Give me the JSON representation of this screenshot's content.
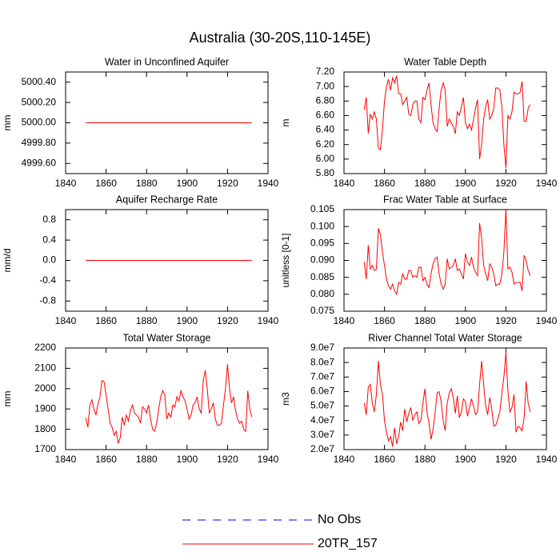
{
  "title": "Australia (30-20S,110-145E)",
  "legend": [
    {
      "name": "No Obs",
      "color": "#0000ff",
      "dash": true
    },
    {
      "name": "20TR_157",
      "color": "#ff0000",
      "dash": false
    }
  ],
  "chart_data": [
    {
      "type": "line",
      "title": "Water in Unconfined Aquifer",
      "ylabel": "mm",
      "color": "#ff0000",
      "x": [
        1850,
        1851,
        1852,
        1853,
        1854,
        1855,
        1856,
        1857,
        1858,
        1859,
        1860,
        1861,
        1862,
        1863,
        1864,
        1865,
        1866,
        1867,
        1868,
        1869,
        1870,
        1871,
        1872,
        1873,
        1874,
        1875,
        1876,
        1877,
        1878,
        1879,
        1880,
        1881,
        1882,
        1883,
        1884,
        1885,
        1886,
        1887,
        1888,
        1889,
        1890,
        1891,
        1892,
        1893,
        1894,
        1895,
        1896,
        1897,
        1898,
        1899,
        1900,
        1901,
        1902,
        1903,
        1904,
        1905,
        1906,
        1907,
        1908,
        1909,
        1910,
        1911,
        1912,
        1913,
        1914,
        1915,
        1916,
        1917,
        1918,
        1919,
        1920,
        1921,
        1922,
        1923,
        1924,
        1925,
        1926,
        1927,
        1928,
        1929,
        1930,
        1931,
        1932
      ],
      "values": [
        5000,
        5000,
        5000,
        5000,
        5000,
        5000,
        5000,
        5000,
        5000,
        5000,
        5000,
        5000,
        5000,
        5000,
        5000,
        5000,
        5000,
        5000,
        5000,
        5000,
        5000,
        5000,
        5000,
        5000,
        5000,
        5000,
        5000,
        5000,
        5000,
        5000,
        5000,
        5000,
        5000,
        5000,
        5000,
        5000,
        5000,
        5000,
        5000,
        5000,
        5000,
        5000,
        5000,
        5000,
        5000,
        5000,
        5000,
        5000,
        5000,
        5000,
        5000,
        5000,
        5000,
        5000,
        5000,
        5000,
        5000,
        5000,
        5000,
        5000,
        5000,
        5000,
        5000,
        5000,
        5000,
        5000,
        5000,
        5000,
        5000,
        5000,
        5000,
        5000,
        5000,
        5000,
        5000,
        5000,
        5000,
        5000,
        5000,
        5000,
        5000,
        5000,
        5000
      ],
      "xlim": [
        1840,
        1940
      ],
      "xticks": [
        1840,
        1860,
        1880,
        1900,
        1920,
        1940
      ],
      "ylim": [
        4999.5,
        5000.5
      ],
      "yticks": [
        {
          "value": 4999.6,
          "label": "4999.60"
        },
        {
          "value": 4999.8,
          "label": "4999.80"
        },
        {
          "value": 5000,
          "label": "5000.00"
        },
        {
          "value": 5000.2,
          "label": "5000.20"
        },
        {
          "value": 5000.4,
          "label": "5000.40"
        }
      ]
    },
    {
      "type": "line",
      "title": "Water Table Depth",
      "ylabel": "m",
      "color": "#ff0000",
      "x": [
        1850,
        1851,
        1852,
        1853,
        1854,
        1855,
        1856,
        1857,
        1858,
        1859,
        1860,
        1861,
        1862,
        1863,
        1864,
        1865,
        1866,
        1867,
        1868,
        1869,
        1870,
        1871,
        1872,
        1873,
        1874,
        1875,
        1876,
        1877,
        1878,
        1879,
        1880,
        1881,
        1882,
        1883,
        1884,
        1885,
        1886,
        1887,
        1888,
        1889,
        1890,
        1891,
        1892,
        1893,
        1894,
        1895,
        1896,
        1897,
        1898,
        1899,
        1900,
        1901,
        1902,
        1903,
        1904,
        1905,
        1906,
        1907,
        1908,
        1909,
        1910,
        1911,
        1912,
        1913,
        1914,
        1915,
        1916,
        1917,
        1918,
        1919,
        1920,
        1921,
        1922,
        1923,
        1924,
        1925,
        1926,
        1927,
        1928,
        1929,
        1930,
        1931,
        1932
      ],
      "values": [
        6.68,
        6.85,
        6.35,
        6.62,
        6.55,
        6.65,
        6.55,
        6.15,
        6.13,
        6.4,
        6.8,
        7.0,
        7.1,
        6.95,
        7.12,
        7.05,
        7.15,
        6.9,
        6.9,
        6.75,
        6.8,
        6.85,
        6.62,
        6.6,
        6.75,
        6.8,
        6.8,
        6.55,
        6.5,
        6.85,
        6.82,
        6.95,
        7.05,
        6.75,
        6.5,
        6.42,
        6.38,
        6.7,
        6.95,
        7.05,
        6.95,
        6.45,
        6.55,
        6.5,
        6.45,
        6.35,
        6.65,
        6.6,
        6.72,
        6.85,
        6.5,
        6.42,
        6.48,
        6.4,
        6.55,
        6.7,
        6.82,
        6.0,
        6.2,
        6.55,
        6.72,
        6.82,
        6.55,
        6.6,
        6.7,
        6.98,
        6.98,
        6.95,
        6.72,
        6.2,
        5.88,
        6.6,
        6.55,
        6.65,
        6.92,
        6.9,
        6.9,
        6.92,
        7.07,
        6.52,
        6.52,
        6.7,
        6.75
      ],
      "xlim": [
        1840,
        1940
      ],
      "xticks": [
        1840,
        1860,
        1880,
        1900,
        1920,
        1940
      ],
      "ylim": [
        5.8,
        7.2
      ],
      "yticks": [
        {
          "value": 5.8,
          "label": "5.80"
        },
        {
          "value": 6.0,
          "label": "6.00"
        },
        {
          "value": 6.2,
          "label": "6.20"
        },
        {
          "value": 6.4,
          "label": "6.40"
        },
        {
          "value": 6.6,
          "label": "6.60"
        },
        {
          "value": 6.8,
          "label": "6.80"
        },
        {
          "value": 7.0,
          "label": "7.00"
        },
        {
          "value": 7.2,
          "label": "7.20"
        }
      ]
    },
    {
      "type": "line",
      "title": "Aquifer Recharge Rate",
      "ylabel": "mm/d",
      "color": "#ff0000",
      "x": [
        1850,
        1851,
        1852,
        1853,
        1854,
        1855,
        1856,
        1857,
        1858,
        1859,
        1860,
        1861,
        1862,
        1863,
        1864,
        1865,
        1866,
        1867,
        1868,
        1869,
        1870,
        1871,
        1872,
        1873,
        1874,
        1875,
        1876,
        1877,
        1878,
        1879,
        1880,
        1881,
        1882,
        1883,
        1884,
        1885,
        1886,
        1887,
        1888,
        1889,
        1890,
        1891,
        1892,
        1893,
        1894,
        1895,
        1896,
        1897,
        1898,
        1899,
        1900,
        1901,
        1902,
        1903,
        1904,
        1905,
        1906,
        1907,
        1908,
        1909,
        1910,
        1911,
        1912,
        1913,
        1914,
        1915,
        1916,
        1917,
        1918,
        1919,
        1920,
        1921,
        1922,
        1923,
        1924,
        1925,
        1926,
        1927,
        1928,
        1929,
        1930,
        1931,
        1932
      ],
      "values": [
        0,
        0,
        0,
        0,
        0,
        0,
        0,
        0,
        0,
        0,
        0,
        0,
        0,
        0,
        0,
        0,
        0,
        0,
        0,
        0,
        0,
        0,
        0,
        0,
        0,
        0,
        0,
        0,
        0,
        0,
        0,
        0,
        0,
        0,
        0,
        0,
        0,
        0,
        0,
        0,
        0,
        0,
        0,
        0,
        0,
        0,
        0,
        0,
        0,
        0,
        0,
        0,
        0,
        0,
        0,
        0,
        0,
        0,
        0,
        0,
        0,
        0,
        0,
        0,
        0,
        0,
        0,
        0,
        0,
        0,
        0,
        0,
        0,
        0,
        0,
        0,
        0,
        0,
        0,
        0,
        0,
        0,
        0
      ],
      "xlim": [
        1840,
        1940
      ],
      "xticks": [
        1840,
        1860,
        1880,
        1900,
        1920,
        1940
      ],
      "ylim": [
        -1,
        1
      ],
      "yticks": [
        -0.8,
        -0.4,
        {
          "value": 0,
          "label": "0.0"
        },
        0.4,
        0.8
      ]
    },
    {
      "type": "line",
      "title": "Frac Water Table at Surface",
      "ylabel": "unitless [0-1]",
      "color": "#ff0000",
      "x": [
        1850,
        1851,
        1852,
        1853,
        1854,
        1855,
        1856,
        1857,
        1858,
        1859,
        1860,
        1861,
        1862,
        1863,
        1864,
        1865,
        1866,
        1867,
        1868,
        1869,
        1870,
        1871,
        1872,
        1873,
        1874,
        1875,
        1876,
        1877,
        1878,
        1879,
        1880,
        1881,
        1882,
        1883,
        1884,
        1885,
        1886,
        1887,
        1888,
        1889,
        1890,
        1891,
        1892,
        1893,
        1894,
        1895,
        1896,
        1897,
        1898,
        1899,
        1900,
        1901,
        1902,
        1903,
        1904,
        1905,
        1906,
        1907,
        1908,
        1909,
        1910,
        1911,
        1912,
        1913,
        1914,
        1915,
        1916,
        1917,
        1918,
        1919,
        1920,
        1921,
        1922,
        1923,
        1924,
        1925,
        1926,
        1927,
        1928,
        1929,
        1930,
        1931,
        1932
      ],
      "values": [
        0.0895,
        0.0845,
        0.0945,
        0.0875,
        0.0885,
        0.087,
        0.0875,
        0.0995,
        0.0975,
        0.0925,
        0.0885,
        0.0845,
        0.0825,
        0.0815,
        0.083,
        0.081,
        0.08,
        0.0835,
        0.083,
        0.086,
        0.0845,
        0.0845,
        0.087,
        0.087,
        0.085,
        0.0855,
        0.085,
        0.088,
        0.088,
        0.084,
        0.085,
        0.083,
        0.082,
        0.086,
        0.089,
        0.0905,
        0.091,
        0.086,
        0.083,
        0.0815,
        0.083,
        0.0905,
        0.0875,
        0.088,
        0.0885,
        0.0905,
        0.087,
        0.0875,
        0.086,
        0.0845,
        0.092,
        0.0895,
        0.0885,
        0.091,
        0.088,
        0.0865,
        0.0855,
        0.101,
        0.0965,
        0.0885,
        0.086,
        0.084,
        0.089,
        0.088,
        0.086,
        0.0825,
        0.083,
        0.083,
        0.086,
        0.0925,
        0.105,
        0.0875,
        0.088,
        0.0865,
        0.083,
        0.0835,
        0.0835,
        0.0835,
        0.081,
        0.0915,
        0.09,
        0.087,
        0.0855
      ],
      "xlim": [
        1840,
        1940
      ],
      "xticks": [
        1840,
        1860,
        1880,
        1900,
        1920,
        1940
      ],
      "ylim": [
        0.075,
        0.105
      ],
      "yticks": [
        0.075,
        {
          "value": 0.08,
          "label": "0.080"
        },
        0.085,
        {
          "value": 0.09,
          "label": "0.090"
        },
        0.095,
        {
          "value": 0.1,
          "label": "0.100"
        },
        0.105
      ]
    },
    {
      "type": "line",
      "title": "Total Water Storage",
      "ylabel": "mm",
      "color": "#ff0000",
      "x": [
        1850,
        1851,
        1852,
        1853,
        1854,
        1855,
        1856,
        1857,
        1858,
        1859,
        1860,
        1861,
        1862,
        1863,
        1864,
        1865,
        1866,
        1867,
        1868,
        1869,
        1870,
        1871,
        1872,
        1873,
        1874,
        1875,
        1876,
        1877,
        1878,
        1879,
        1880,
        1881,
        1882,
        1883,
        1884,
        1885,
        1886,
        1887,
        1888,
        1889,
        1890,
        1891,
        1892,
        1893,
        1894,
        1895,
        1896,
        1897,
        1898,
        1899,
        1900,
        1901,
        1902,
        1903,
        1904,
        1905,
        1906,
        1907,
        1908,
        1909,
        1910,
        1911,
        1912,
        1913,
        1914,
        1915,
        1916,
        1917,
        1918,
        1919,
        1920,
        1921,
        1922,
        1923,
        1924,
        1925,
        1926,
        1927,
        1928,
        1929,
        1930,
        1931,
        1932
      ],
      "values": [
        1855,
        1810,
        1920,
        1945,
        1900,
        1870,
        1925,
        1960,
        2040,
        2035,
        1970,
        1900,
        1830,
        1810,
        1770,
        1790,
        1730,
        1760,
        1860,
        1820,
        1870,
        1840,
        1890,
        1920,
        1880,
        1870,
        1860,
        1830,
        1910,
        1900,
        1880,
        1920,
        1850,
        1800,
        1790,
        1830,
        1900,
        1960,
        1990,
        1970,
        1850,
        1880,
        1860,
        1920,
        1910,
        1960,
        1940,
        1990,
        1960,
        1940,
        1900,
        1850,
        1870,
        1920,
        1930,
        1960,
        1900,
        1880,
        2040,
        2090,
        2000,
        1880,
        1900,
        1930,
        1850,
        1820,
        1820,
        1830,
        1920,
        2000,
        2120,
        2000,
        1930,
        1960,
        1890,
        1850,
        1830,
        1840,
        1800,
        1790,
        1990,
        1900,
        1860
      ],
      "xlim": [
        1840,
        1940
      ],
      "xticks": [
        1840,
        1860,
        1880,
        1900,
        1920,
        1940
      ],
      "ylim": [
        1700,
        2200
      ],
      "yticks": [
        1700,
        1800,
        1900,
        2000,
        2100,
        2200
      ]
    },
    {
      "type": "line",
      "title": "River Channel Total Water Storage",
      "ylabel": "m3",
      "color": "#ff0000",
      "x": [
        1850,
        1851,
        1852,
        1853,
        1854,
        1855,
        1856,
        1857,
        1858,
        1859,
        1860,
        1861,
        1862,
        1863,
        1864,
        1865,
        1866,
        1867,
        1868,
        1869,
        1870,
        1871,
        1872,
        1873,
        1874,
        1875,
        1876,
        1877,
        1878,
        1879,
        1880,
        1881,
        1882,
        1883,
        1884,
        1885,
        1886,
        1887,
        1888,
        1889,
        1890,
        1891,
        1892,
        1893,
        1894,
        1895,
        1896,
        1897,
        1898,
        1899,
        1900,
        1901,
        1902,
        1903,
        1904,
        1905,
        1906,
        1907,
        1908,
        1909,
        1910,
        1911,
        1912,
        1913,
        1914,
        1915,
        1916,
        1917,
        1918,
        1919,
        1920,
        1921,
        1922,
        1923,
        1924,
        1925,
        1926,
        1927,
        1928,
        1929,
        1930,
        1931,
        1932
      ],
      "values": [
        52000000.0,
        44000000.0,
        63000000.0,
        65000000.0,
        52000000.0,
        46000000.0,
        58000000.0,
        81000000.0,
        65000000.0,
        58000000.0,
        40000000.0,
        32000000.0,
        26000000.0,
        29000000.0,
        22000000.0,
        35000000.0,
        24000000.0,
        29000000.0,
        39000000.0,
        33000000.0,
        48000000.0,
        39000000.0,
        45000000.0,
        49000000.0,
        40000000.0,
        44000000.0,
        46000000.0,
        38000000.0,
        40000000.0,
        52000000.0,
        62000000.0,
        46000000.0,
        38000000.0,
        27000000.0,
        34000000.0,
        45000000.0,
        59000000.0,
        60000000.0,
        53000000.0,
        40000000.0,
        33000000.0,
        52000000.0,
        59000000.0,
        62000000.0,
        56000000.0,
        45000000.0,
        57000000.0,
        42000000.0,
        46000000.0,
        55000000.0,
        53000000.0,
        43000000.0,
        49000000.0,
        55000000.0,
        50000000.0,
        44000000.0,
        46000000.0,
        65000000.0,
        81000000.0,
        65000000.0,
        50000000.0,
        44000000.0,
        56000000.0,
        48000000.0,
        36000000.0,
        37000000.0,
        41000000.0,
        46000000.0,
        59000000.0,
        70000000.0,
        87000000.0,
        60000000.0,
        46000000.0,
        49000000.0,
        58000000.0,
        32000000.0,
        36000000.0,
        35000000.0,
        33000000.0,
        42000000.0,
        67000000.0,
        52000000.0,
        46000000.0
      ],
      "xlim": [
        1840,
        1940
      ],
      "xticks": [
        1840,
        1860,
        1880,
        1900,
        1920,
        1940
      ],
      "ylim": [
        20000000.0,
        90000000.0
      ],
      "yticks": [
        {
          "value": 20000000.0,
          "label": "2.0e7"
        },
        {
          "value": 30000000.0,
          "label": "3.0e7"
        },
        {
          "value": 40000000.0,
          "label": "4.0e7"
        },
        {
          "value": 50000000.0,
          "label": "5.0e7"
        },
        {
          "value": 60000000.0,
          "label": "6.0e7"
        },
        {
          "value": 70000000.0,
          "label": "7.0e7"
        },
        {
          "value": 80000000.0,
          "label": "8.0e7"
        },
        {
          "value": 90000000.0,
          "label": "9.0e7"
        }
      ]
    }
  ]
}
